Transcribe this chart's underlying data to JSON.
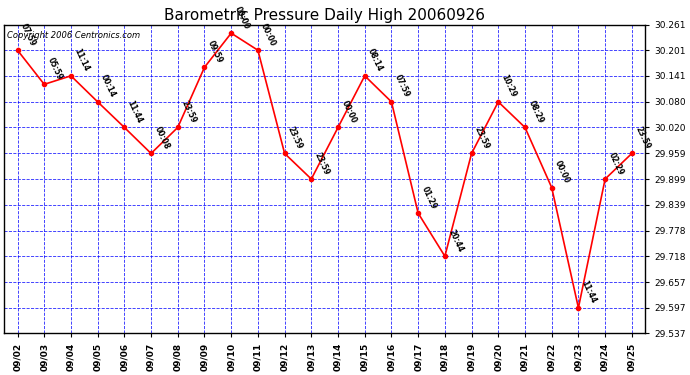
{
  "title": "Barometric Pressure Daily High 20060926",
  "copyright": "Copyright 2006 Centronics.com",
  "x_labels": [
    "09/02",
    "09/03",
    "09/04",
    "09/05",
    "09/06",
    "09/07",
    "09/08",
    "09/09",
    "09/10",
    "09/11",
    "09/12",
    "09/13",
    "09/14",
    "09/15",
    "09/16",
    "09/17",
    "09/18",
    "09/19",
    "09/20",
    "09/21",
    "09/22",
    "09/23",
    "09/24",
    "09/25"
  ],
  "y_values": [
    30.201,
    30.121,
    30.141,
    30.08,
    30.02,
    29.959,
    30.02,
    30.161,
    30.241,
    30.201,
    29.959,
    29.899,
    30.02,
    30.141,
    30.08,
    29.819,
    29.718,
    29.959,
    30.08,
    30.02,
    29.879,
    29.597,
    29.899,
    29.959
  ],
  "point_labels": [
    "07:59",
    "05:59",
    "11:14",
    "00:14",
    "11:44",
    "00:08",
    "23:59",
    "09:59",
    "00:00",
    "00:00",
    "23:59",
    "23:59",
    "00:00",
    "08:14",
    "07:59",
    "01:29",
    "20:44",
    "23:59",
    "10:29",
    "08:29",
    "00:00",
    "11:44",
    "02:29",
    "23:59"
  ],
  "ylim_min": 29.537,
  "ylim_max": 30.261,
  "yticks": [
    29.537,
    29.597,
    29.657,
    29.718,
    29.778,
    29.839,
    29.899,
    29.959,
    30.02,
    30.08,
    30.141,
    30.201,
    30.261
  ],
  "line_color": "red",
  "marker_color": "red",
  "grid_color": "blue",
  "background_color": "white",
  "title_fontsize": 11,
  "label_fontsize": 5.5,
  "tick_fontsize": 6.5,
  "copyright_fontsize": 6
}
